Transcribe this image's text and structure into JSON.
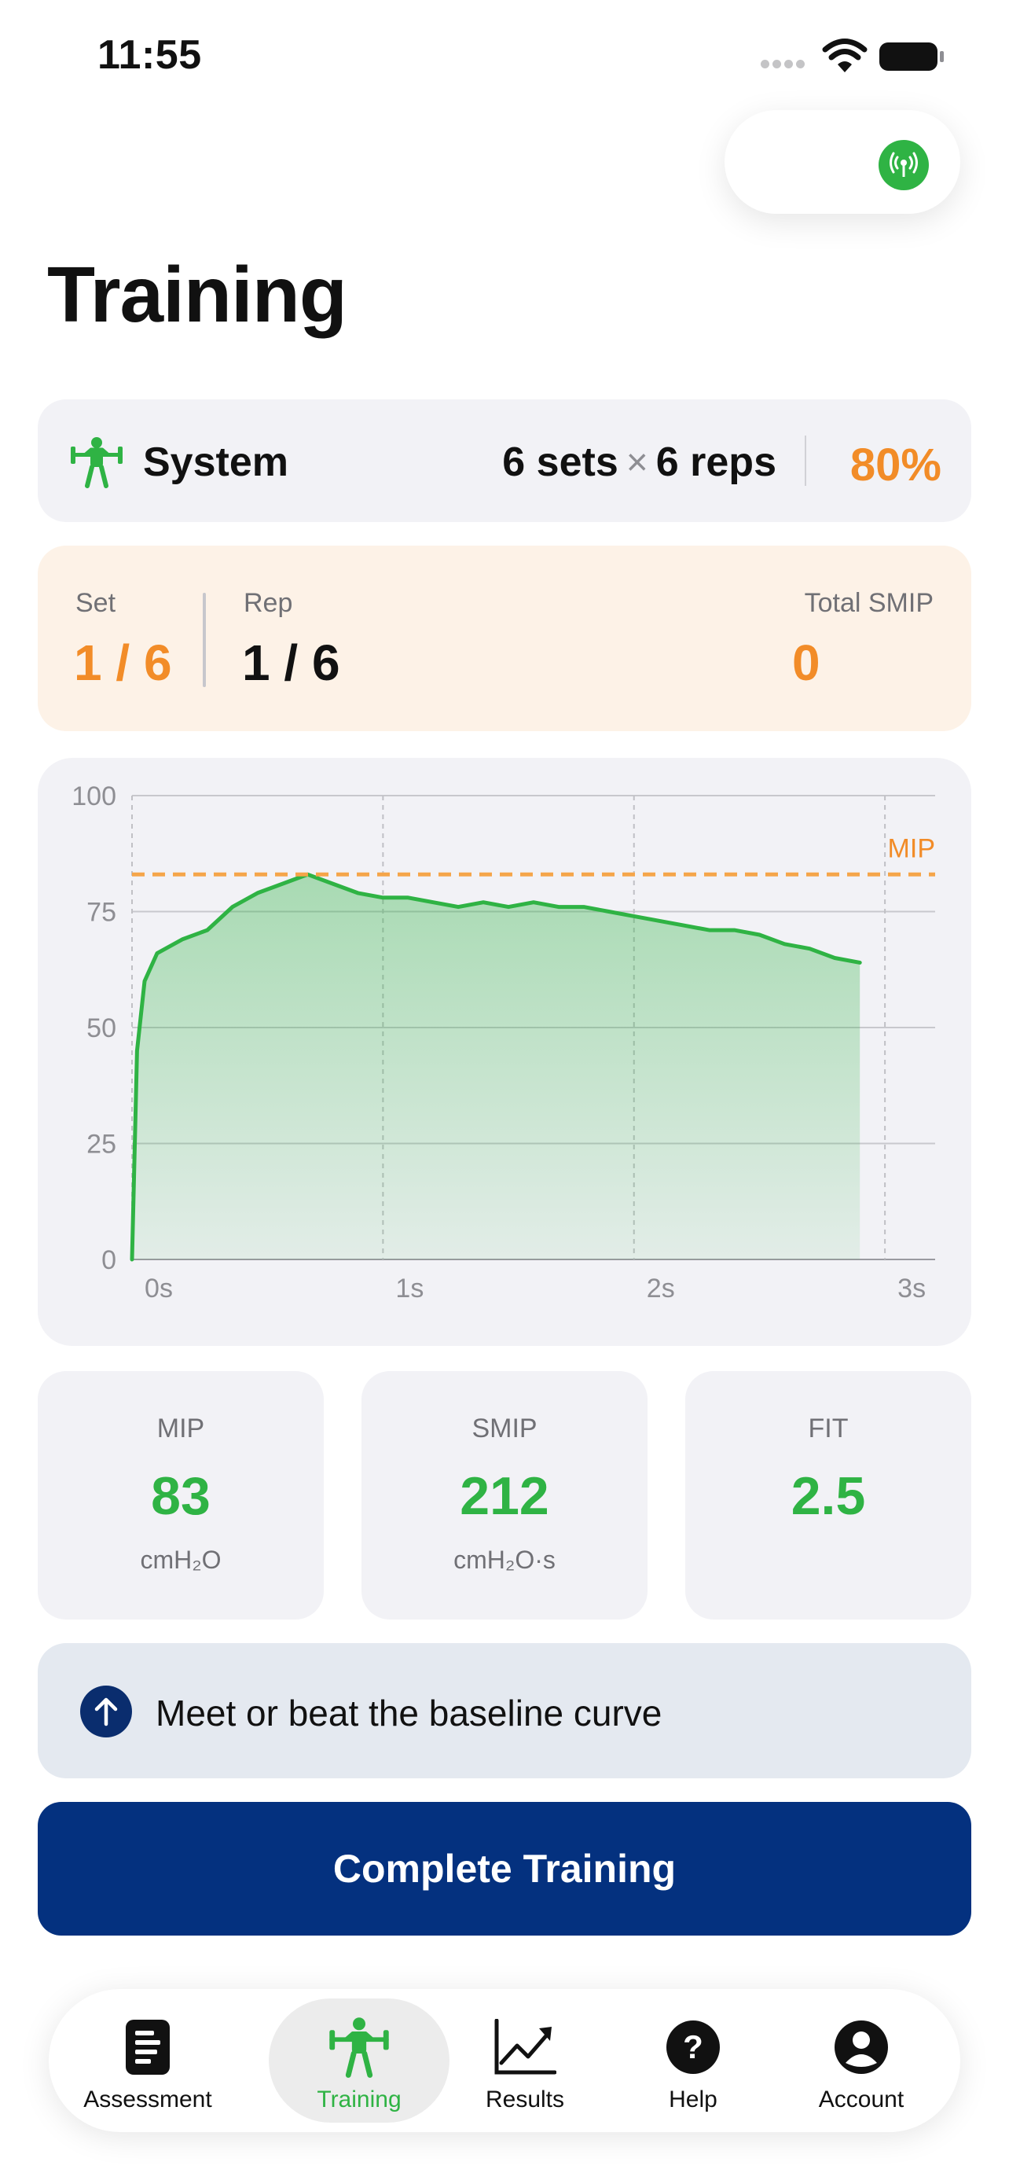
{
  "status_bar": {
    "time": "11:55"
  },
  "page": {
    "title": "Training"
  },
  "system_card": {
    "name": "System",
    "sets": "6 sets",
    "times": "×",
    "reps": "6 reps",
    "intensity": "80%"
  },
  "progress": {
    "set_label": "Set",
    "set_value": "1 / 6",
    "rep_label": "Rep",
    "rep_value": "1 / 6",
    "total_label": "Total SMIP",
    "total_value": "0"
  },
  "chart_data": {
    "type": "area",
    "x_ticks": [
      "0s",
      "1s",
      "2s",
      "3s"
    ],
    "y_ticks": [
      "0",
      "25",
      "50",
      "75",
      "100"
    ],
    "ylim": [
      0,
      100
    ],
    "xlim": [
      0,
      3.2
    ],
    "grid": true,
    "reference_line": {
      "label": "MIP",
      "value": 83
    },
    "series": [
      {
        "x": [
          0,
          0.02,
          0.05,
          0.1,
          0.2,
          0.3,
          0.4,
          0.5,
          0.6,
          0.7,
          0.8,
          0.9,
          1.0,
          1.1,
          1.2,
          1.3,
          1.4,
          1.5,
          1.6,
          1.7,
          1.8,
          1.9,
          2.0,
          2.1,
          2.2,
          2.3,
          2.4,
          2.5,
          2.6,
          2.7,
          2.8,
          2.9
        ],
        "y": [
          0,
          45,
          60,
          66,
          69,
          71,
          76,
          79,
          81,
          83,
          81,
          79,
          78,
          78,
          77,
          76,
          77,
          76,
          77,
          76,
          76,
          75,
          74,
          73,
          72,
          71,
          71,
          70,
          68,
          67,
          65,
          64
        ]
      }
    ]
  },
  "metrics": [
    {
      "label": "MIP",
      "value": "83",
      "unit": "cmH₂O"
    },
    {
      "label": "SMIP",
      "value": "212",
      "unit": "cmH₂O·s"
    },
    {
      "label": "FIT",
      "value": "2.5",
      "unit": ""
    }
  ],
  "hint": {
    "text": "Meet or beat the baseline curve"
  },
  "action": {
    "complete_label": "Complete Training"
  },
  "tabs": [
    {
      "label": "Assessment",
      "icon": "document-icon"
    },
    {
      "label": "Training",
      "icon": "weightlifter-icon"
    },
    {
      "label": "Results",
      "icon": "chart-trend-icon"
    },
    {
      "label": "Help",
      "icon": "help-icon"
    },
    {
      "label": "Account",
      "icon": "account-icon"
    }
  ],
  "colors": {
    "accent_green": "#2fb344",
    "accent_orange": "#f28c28",
    "primary_navy": "#04317f"
  }
}
